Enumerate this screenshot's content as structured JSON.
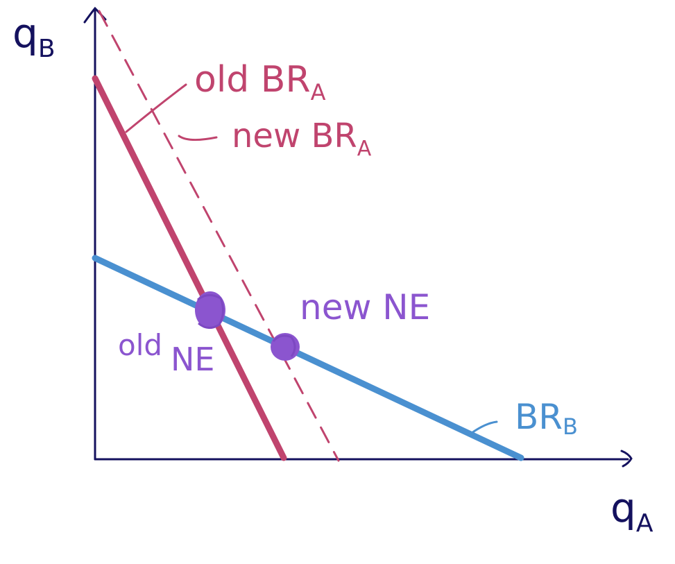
{
  "diagram": {
    "y_axis_label": {
      "main": "q",
      "sub": "B"
    },
    "x_axis_label": {
      "main": "q",
      "sub": "A"
    },
    "old_br_a_label": {
      "main": "old BR",
      "sub": "A"
    },
    "new_br_a_label": {
      "main": "new BR",
      "sub": "A"
    },
    "br_b_label": {
      "main": "BR",
      "sub": "B"
    },
    "old_ne_label": {
      "first": "old",
      "second": "NE"
    },
    "new_ne_label": "new NE"
  },
  "colors": {
    "axes": "#14115e",
    "old_br_a": "#c0446e",
    "new_br_a": "#c0446e",
    "br_b": "#4a90d0",
    "equilibrium": "#8b55cf"
  }
}
